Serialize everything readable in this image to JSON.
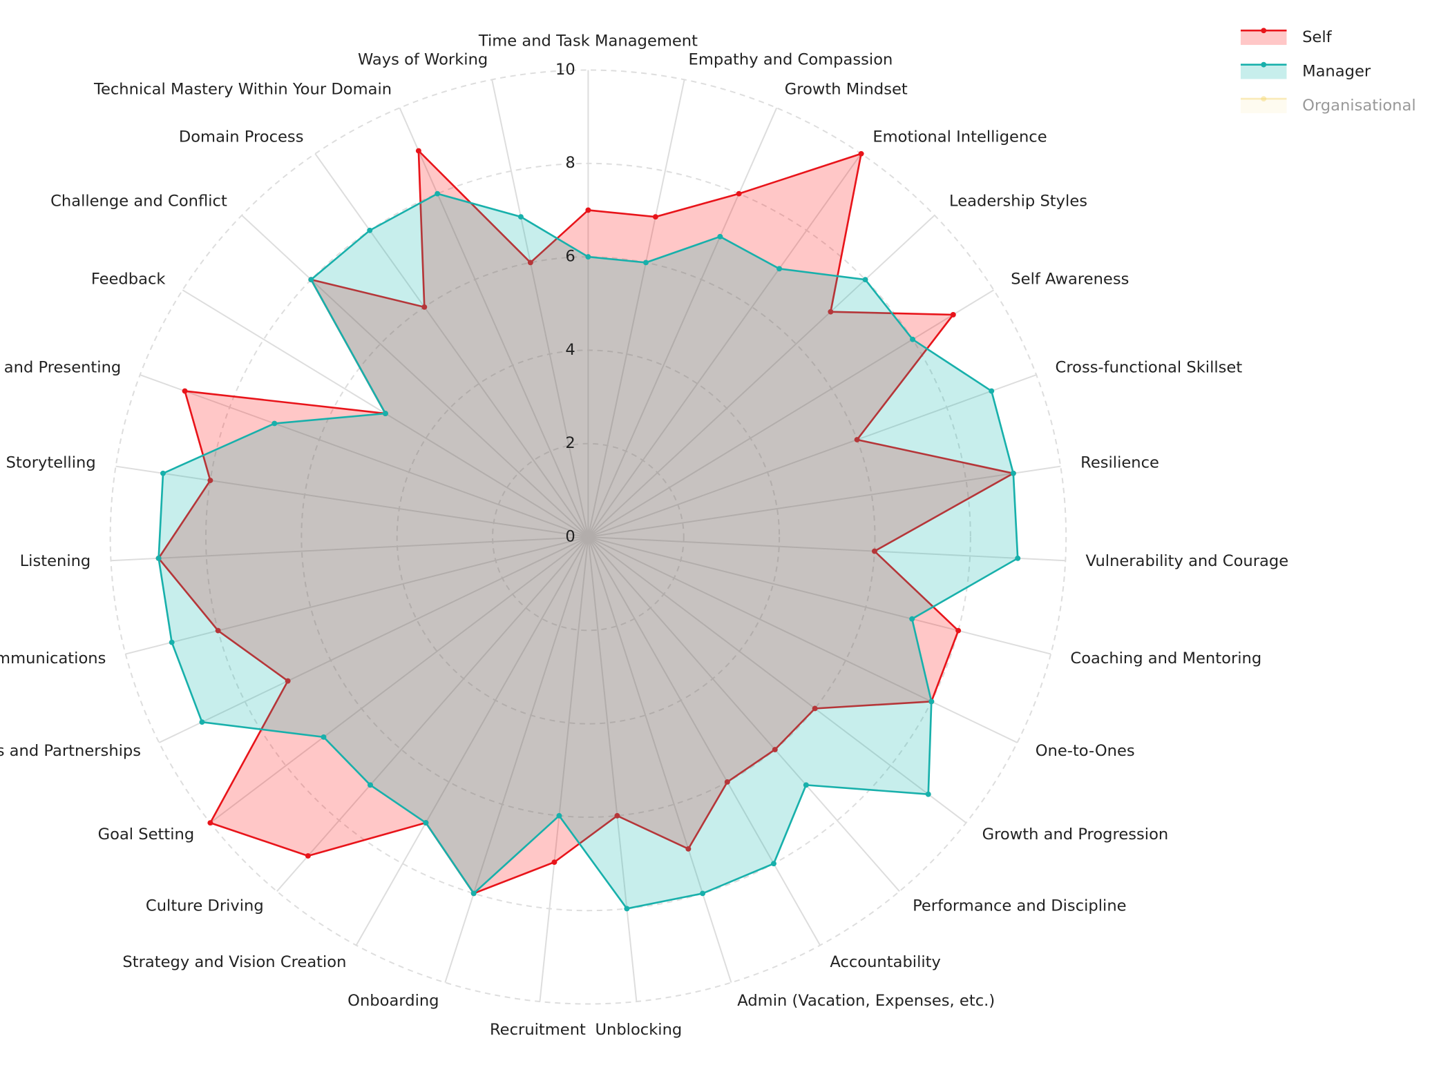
{
  "chart_data": {
    "type": "radar",
    "categories": [
      "Time and Task Management",
      "Empathy and Compassion",
      "Growth Mindset",
      "Emotional Intelligence",
      "Leadership Styles",
      "Self Awareness",
      "Cross-functional Skillset",
      "Resilience",
      "Vulnerability and Courage",
      "Coaching and Mentoring",
      "One-to-Ones",
      "Growth and Progression",
      "Performance and Discipline",
      "Accountability",
      "Admin (Vacation, Expenses, etc.)",
      "Unblocking",
      "Recruitment",
      "Onboarding",
      "Strategy and Vision Creation",
      "Culture Driving",
      "Goal Setting",
      "Relationships and Partnerships",
      "Written Communications",
      "Listening",
      "Storytelling",
      "Public Speaking and Presenting",
      "Feedback",
      "Challenge and Conflict",
      "Domain Process",
      "Technical Mastery Within Your Domain",
      "Ways of Working"
    ],
    "series": [
      {
        "name": "Self",
        "color": "#e8141a",
        "fill": "#ff0000",
        "visible": true,
        "values": [
          7,
          7,
          8,
          10,
          7,
          9,
          6,
          9,
          6,
          8,
          8,
          6,
          6,
          6,
          7,
          6,
          7,
          8,
          7,
          9,
          10,
          7,
          8,
          9,
          8,
          9,
          5,
          8,
          6,
          9,
          6
        ]
      },
      {
        "name": "Manager",
        "color": "#18b0ab",
        "fill": "#00b0aa",
        "visible": true,
        "values": [
          6,
          6,
          7,
          7,
          8,
          8,
          9,
          9,
          9,
          7,
          8,
          9,
          7,
          8,
          8,
          8,
          6,
          8,
          7,
          7,
          7,
          9,
          9,
          9,
          9,
          7,
          5,
          8,
          8,
          8,
          7
        ]
      },
      {
        "name": "Organisational",
        "color": "#f5d56b",
        "fill": "#f5d56b",
        "visible": false,
        "values": [
          null,
          null,
          null,
          null,
          null,
          null,
          null,
          null,
          null,
          null,
          null,
          null,
          null,
          null,
          null,
          null,
          null,
          null,
          null,
          null,
          null,
          null,
          null,
          null,
          null,
          null,
          null,
          null,
          null,
          null,
          null
        ]
      }
    ],
    "ylim": [
      0,
      10
    ],
    "yticks": [
      0,
      2,
      4,
      6,
      8,
      10
    ],
    "grid": true
  }
}
